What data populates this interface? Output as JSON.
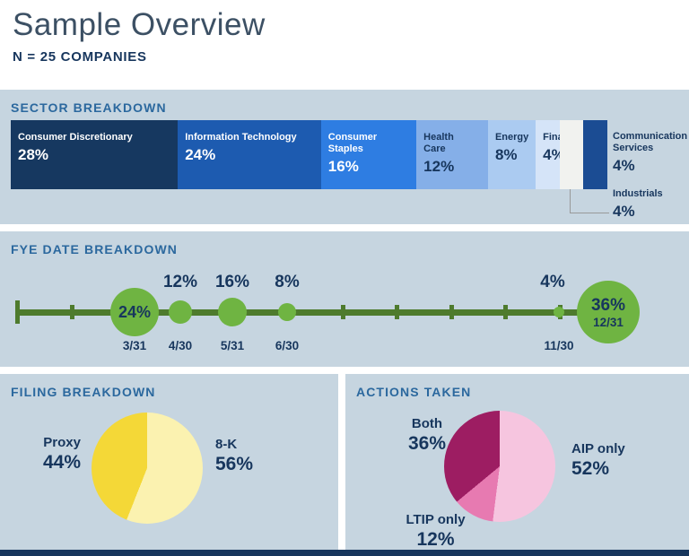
{
  "title": "Sample Overview",
  "subtitle": "N = 25 COMPANIES",
  "colors": {
    "panel_background": "#c6d5e0",
    "heading_blue": "#2b689e",
    "navy_text": "#17365d",
    "callout_line": "#999999",
    "footer_bar": "#17365d"
  },
  "chart_data": [
    {
      "type": "bar",
      "variant": "horizontal-stacked",
      "title": "SECTOR BREAKDOWN",
      "unit": "%",
      "total": 100,
      "segments": [
        {
          "label": "Consumer Discretionary",
          "value": 28,
          "display": "28%",
          "color": "#163860",
          "text": "light",
          "placement": "inside"
        },
        {
          "label": "Information Technology",
          "value": 24,
          "display": "24%",
          "color": "#1d5bb0",
          "text": "light",
          "placement": "inside"
        },
        {
          "label": "Consumer Staples",
          "value": 16,
          "display": "16%",
          "color": "#2e7de2",
          "text": "light",
          "placement": "inside"
        },
        {
          "label": "Health Care",
          "value": 12,
          "display": "12%",
          "color": "#85afe8",
          "text": "dark",
          "placement": "inside"
        },
        {
          "label": "Energy",
          "value": 8,
          "display": "8%",
          "color": "#abcbf1",
          "text": "dark",
          "placement": "inside"
        },
        {
          "label": "Financials",
          "value": 4,
          "display": "4%",
          "color": "#d5e4f8",
          "text": "dark",
          "placement": "inside"
        },
        {
          "label": "Industrials",
          "value": 4,
          "display": "4%",
          "color": "#f1f2ef",
          "text": "dark",
          "placement": "callout-below"
        },
        {
          "label": "Communication Services",
          "value": 4,
          "display": "4%",
          "color": "#1b4c93",
          "text": "dark",
          "placement": "outside-right"
        }
      ]
    },
    {
      "type": "scatter",
      "variant": "bubble-timeline",
      "title": "FYE DATE BREAKDOWN",
      "unit": "%",
      "line_color": "#4e7b2d",
      "bubble_color": "#6fb442",
      "axis_months": [
        "1/31",
        "2/28",
        "3/31",
        "4/30",
        "5/31",
        "6/30",
        "7/31",
        "8/31",
        "9/30",
        "10/31",
        "11/30",
        "12/31"
      ],
      "points": [
        {
          "date": "3/31",
          "value": 24,
          "display": "24%",
          "label_placement": "inside"
        },
        {
          "date": "4/30",
          "value": 12,
          "display": "12%",
          "label_placement": "above"
        },
        {
          "date": "5/31",
          "value": 16,
          "display": "16%",
          "label_placement": "above"
        },
        {
          "date": "6/30",
          "value": 8,
          "display": "8%",
          "label_placement": "above"
        },
        {
          "date": "11/30",
          "value": 4,
          "display": "4%",
          "label_placement": "above"
        },
        {
          "date": "12/31",
          "value": 36,
          "display": "36%",
          "label_placement": "inside-with-date"
        }
      ]
    },
    {
      "type": "pie",
      "title": "FILING BREAKDOWN",
      "unit": "%",
      "start": "12-o-clock",
      "direction": "clockwise",
      "slices": [
        {
          "label": "8-K",
          "value": 56,
          "display": "56%",
          "color": "#fbf2b0"
        },
        {
          "label": "Proxy",
          "value": 44,
          "display": "44%",
          "color": "#f4d837"
        }
      ]
    },
    {
      "type": "pie",
      "title": "ACTIONS TAKEN",
      "unit": "%",
      "start": "12-o-clock",
      "direction": "clockwise",
      "slices": [
        {
          "label": "AIP only",
          "value": 52,
          "display": "52%",
          "color": "#f6c5df"
        },
        {
          "label": "LTIP only",
          "value": 12,
          "display": "12%",
          "color": "#e77ab1"
        },
        {
          "label": "Both",
          "value": 36,
          "display": "36%",
          "color": "#9d1d62"
        }
      ]
    }
  ]
}
